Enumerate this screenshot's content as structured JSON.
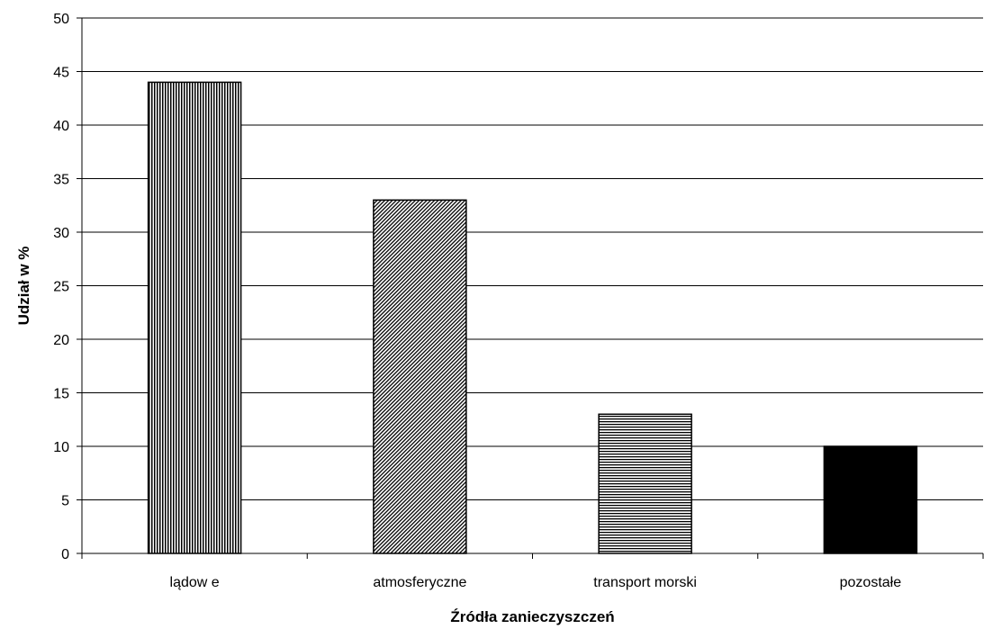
{
  "chart_data": {
    "type": "bar",
    "title": "",
    "xlabel": "Źródła zanieczyszczeń",
    "ylabel": "Udział w %",
    "categories": [
      "lądow e",
      "atmosferyczne",
      "transport morski",
      "pozostałe"
    ],
    "values": [
      44,
      33,
      13,
      10
    ],
    "ylim": [
      0,
      50
    ],
    "yticks": [
      "0",
      "5",
      "10",
      "15",
      "20",
      "25",
      "30",
      "35",
      "40",
      "45",
      "50"
    ],
    "grid": true,
    "legend": "none",
    "bar_fills": [
      "vertical-hatch",
      "diagonal-hatch",
      "horizontal-hatch",
      "solid-black"
    ],
    "colors": {
      "ink": "#000000",
      "background": "#ffffff"
    }
  }
}
